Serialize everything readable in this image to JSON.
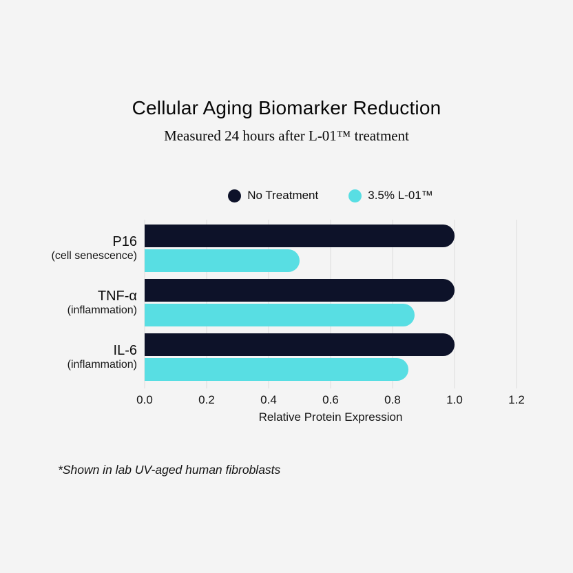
{
  "title": "Cellular Aging Biomarker Reduction",
  "subtitle": "Measured 24 hours after L-01™ treatment",
  "footnote": "*Shown in lab UV-aged human fibroblasts",
  "colors": {
    "background": "#f4f4f4",
    "no_treatment": "#0d1229",
    "treated": "#58dee3",
    "gridline": "#dcdcdc"
  },
  "chart_data": {
    "type": "bar",
    "orientation": "horizontal",
    "title": "Cellular Aging Biomarker Reduction",
    "subtitle": "Measured 24 hours after L-01™ treatment",
    "categories": [
      {
        "name": "P16",
        "sub": "(cell senescence)"
      },
      {
        "name": "TNF-α",
        "sub": "(inflammation)"
      },
      {
        "name": "IL-6",
        "sub": "(inflammation)"
      }
    ],
    "series": [
      {
        "name": "No Treatment",
        "color": "#0d1229",
        "values": [
          1.0,
          1.0,
          1.0
        ]
      },
      {
        "name": "3.5% L-01™",
        "color": "#58dee3",
        "values": [
          0.5,
          0.87,
          0.85
        ]
      }
    ],
    "xlabel": "Relative Protein Expression",
    "xlim": [
      0,
      1.2
    ],
    "xticks": [
      "0.0",
      "0.2",
      "0.4",
      "0.6",
      "0.8",
      "1.0",
      "1.2"
    ],
    "grid": true,
    "legend_position": "top"
  }
}
